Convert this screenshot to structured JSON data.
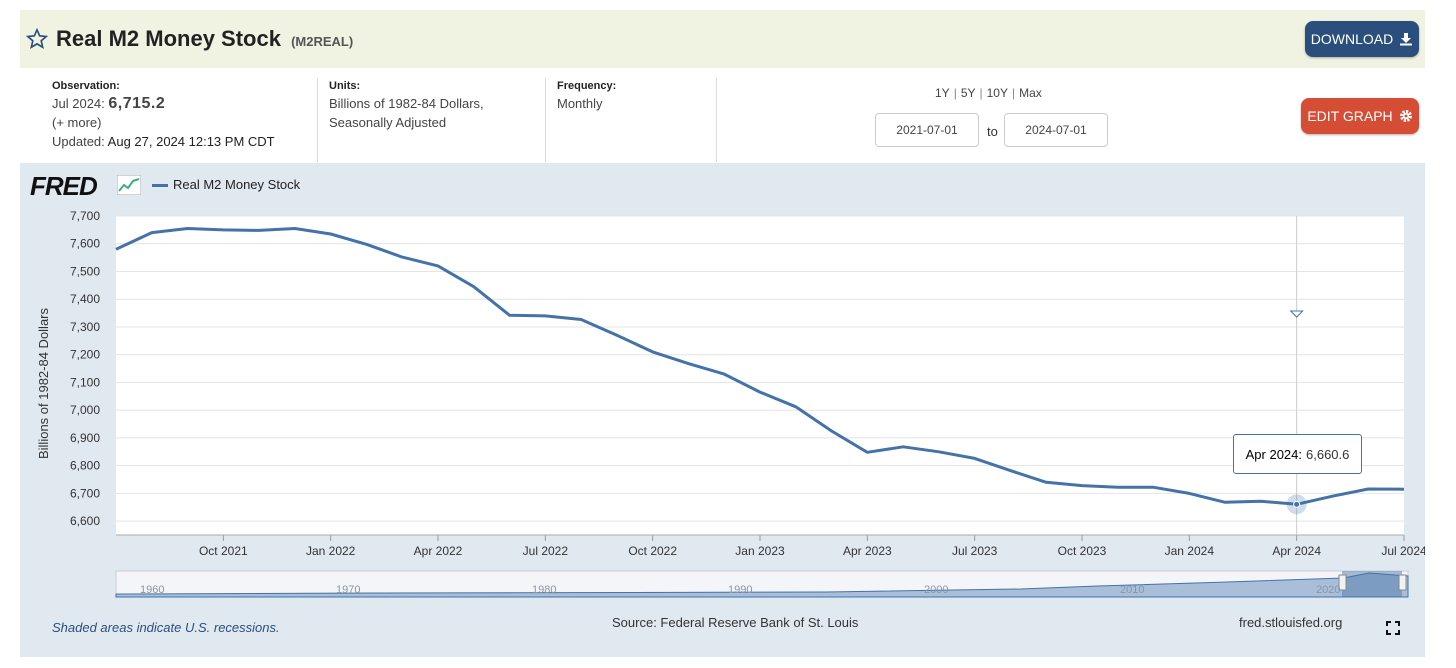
{
  "header": {
    "title": "Real M2 Money Stock",
    "series_id": "(M2REAL)",
    "download_label": "DOWNLOAD"
  },
  "meta": {
    "observation_label": "Observation:",
    "observation_date": "Jul 2024:",
    "observation_value": "6,715.2",
    "more": "(+ more)",
    "updated_label": "Updated:",
    "updated_value": "Aug 27, 2024 12:13 PM CDT",
    "units_label": "Units:",
    "units_line1": "Billions of 1982-84 Dollars,",
    "units_line2": "Seasonally Adjusted",
    "frequency_label": "Frequency:",
    "frequency_value": "Monthly"
  },
  "range": {
    "options": [
      "1Y",
      "5Y",
      "10Y",
      "Max"
    ],
    "start": "2021-07-01",
    "end": "2024-07-01",
    "to_label": "to"
  },
  "edit_label": "EDIT GRAPH",
  "logo": "FRED",
  "footer": {
    "recession_note": "Shaded areas indicate U.S. recessions.",
    "source": "Source: Federal Reserve Bank of St. Louis",
    "site": "fred.stlouisfed.org"
  },
  "tooltip": {
    "date": "Apr 2024:",
    "value": "6,660.6"
  },
  "navigator_labels": [
    "1960",
    "1970",
    "1980",
    "1990",
    "2000",
    "2010",
    "2020"
  ],
  "colors": {
    "line": "#4572a7",
    "header_bg": "#f0f3e1",
    "panel_bg": "#e1e9f0",
    "download_btn": "#2b4f7c",
    "edit_btn": "#d54d35"
  },
  "chart_data": {
    "type": "line",
    "title": "",
    "xlabel": "",
    "ylabel": "Billions of 1982-84 Dollars",
    "ylim": [
      6550,
      7700
    ],
    "yticks": [
      6600,
      6700,
      6800,
      6900,
      7000,
      7100,
      7200,
      7300,
      7400,
      7500,
      7600,
      7700
    ],
    "ytick_labels": [
      "6,600",
      "6,700",
      "6,800",
      "6,900",
      "7,000",
      "7,100",
      "7,200",
      "7,300",
      "7,400",
      "7,500",
      "7,600",
      "7,700"
    ],
    "xtick_labels": [
      "Oct 2021",
      "Jan 2022",
      "Apr 2022",
      "Jul 2022",
      "Oct 2022",
      "Jan 2023",
      "Apr 2023",
      "Jul 2023",
      "Oct 2023",
      "Jan 2024",
      "Apr 2024",
      "Jul 2024"
    ],
    "xtick_month_index": [
      3,
      6,
      9,
      12,
      15,
      18,
      21,
      24,
      27,
      30,
      33,
      36
    ],
    "grid": true,
    "legend": "top-left",
    "series": [
      {
        "name": "Real M2 Money Stock",
        "x": [
          "2021-07",
          "2021-08",
          "2021-09",
          "2021-10",
          "2021-11",
          "2021-12",
          "2022-01",
          "2022-02",
          "2022-03",
          "2022-04",
          "2022-05",
          "2022-06",
          "2022-07",
          "2022-08",
          "2022-09",
          "2022-10",
          "2022-11",
          "2022-12",
          "2023-01",
          "2023-02",
          "2023-03",
          "2023-04",
          "2023-05",
          "2023-06",
          "2023-07",
          "2023-08",
          "2023-09",
          "2023-10",
          "2023-11",
          "2023-12",
          "2024-01",
          "2024-02",
          "2024-03",
          "2024-04",
          "2024-05",
          "2024-06",
          "2024-07"
        ],
        "values": [
          7580,
          7640,
          7655,
          7650,
          7648,
          7655,
          7635,
          7598,
          7552,
          7520,
          7445,
          7342,
          7340,
          7327,
          7270,
          7210,
          7168,
          7130,
          7065,
          7012,
          6925,
          6848,
          6868,
          6850,
          6826,
          6782,
          6740,
          6728,
          6722,
          6722,
          6700,
          6668,
          6672,
          6660.6,
          6690,
          6716,
          6715.2
        ]
      }
    ]
  }
}
